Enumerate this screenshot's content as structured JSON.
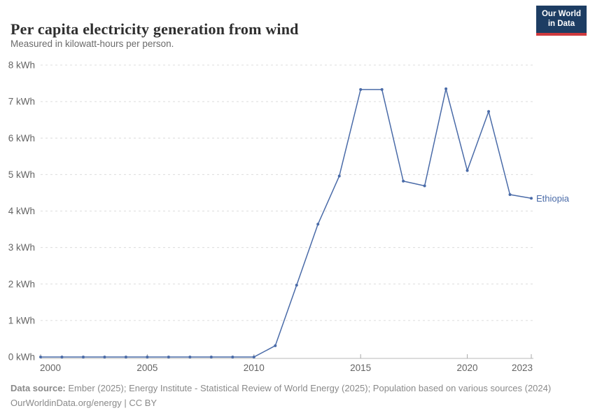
{
  "header": {
    "title": "Per capita electricity generation from wind",
    "subtitle": "Measured in kilowatt-hours per person.",
    "logo": {
      "line1": "Our World",
      "line2": "in Data"
    }
  },
  "chart_data": {
    "type": "line",
    "title": "Per capita electricity generation from wind",
    "subtitle": "Measured in kilowatt-hours per person.",
    "x": [
      2000,
      2001,
      2002,
      2003,
      2004,
      2005,
      2006,
      2007,
      2008,
      2009,
      2010,
      2011,
      2012,
      2013,
      2014,
      2015,
      2016,
      2017,
      2018,
      2019,
      2020,
      2021,
      2022,
      2023
    ],
    "series": [
      {
        "name": "Ethiopia",
        "color": "#4a6ba8",
        "values": [
          0,
          0,
          0,
          0,
          0,
          0,
          0,
          0,
          0,
          0,
          0,
          0.31,
          1.97,
          3.64,
          4.96,
          7.33,
          7.33,
          4.82,
          4.69,
          7.35,
          5.11,
          6.73,
          4.45,
          4.35
        ]
      }
    ],
    "ylim": [
      0,
      8
    ],
    "ytick_step": 1,
    "ytick_suffix": " kWh",
    "xticks": [
      2000,
      2005,
      2010,
      2015,
      2020,
      2023
    ],
    "grid": true,
    "grid_color": "#dcdcdc",
    "axis_color": "#b8b8b8",
    "tick_color": "#a8a8a8",
    "legend_position": "end-of-line"
  },
  "footer": {
    "source_label": "Data source:",
    "source_text": " Ember (2025); Energy Institute - Statistical Review of World Energy (2025); Population based on various sources (2024)",
    "link_line": "OurWorldinData.org/energy | CC BY"
  }
}
